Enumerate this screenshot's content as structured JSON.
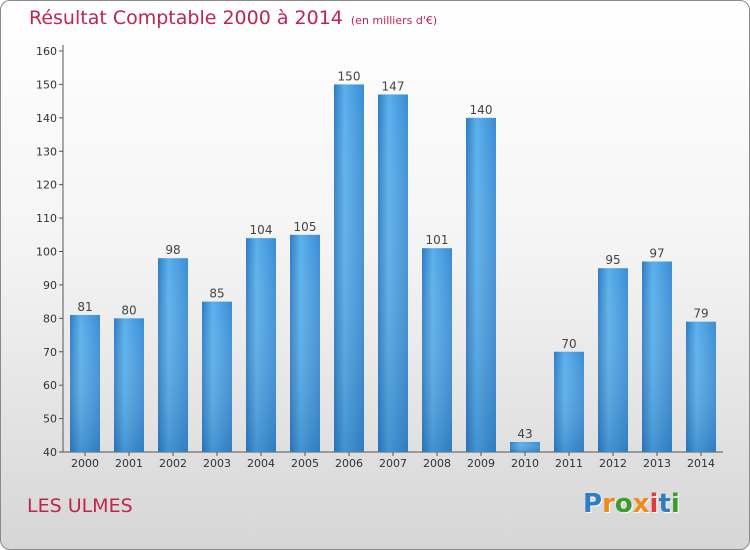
{
  "chart_data": {
    "type": "bar",
    "title": "Résultat Comptable 2000 à 2014",
    "unit_label": "(en milliers d'€)",
    "categories": [
      "2000",
      "2001",
      "2002",
      "2003",
      "2004",
      "2005",
      "2006",
      "2007",
      "2008",
      "2009",
      "2010",
      "2011",
      "2012",
      "2013",
      "2014"
    ],
    "values": [
      81,
      80,
      98,
      85,
      104,
      105,
      150,
      147,
      101,
      140,
      43,
      70,
      95,
      97,
      79
    ],
    "ylim": [
      40,
      160
    ],
    "yticks": [
      40,
      50,
      60,
      70,
      80,
      90,
      100,
      110,
      120,
      130,
      140,
      150,
      160
    ],
    "xlabel": "",
    "ylabel": "",
    "bar_color": "#3d8fd6",
    "bar_color_light": "#5ab0ec",
    "grid": false
  },
  "commune": "LES ULMES",
  "logo": {
    "letters": [
      "P",
      "r",
      "o",
      "x",
      "i",
      "t",
      "i"
    ],
    "colors": [
      "#2f7ec4",
      "#f08a1c",
      "#3d9b2f",
      "#f08a1c",
      "#e03c3c",
      "#2f7ec4",
      "#3d9b2f"
    ]
  },
  "colors": {
    "title": "#c0244f"
  }
}
